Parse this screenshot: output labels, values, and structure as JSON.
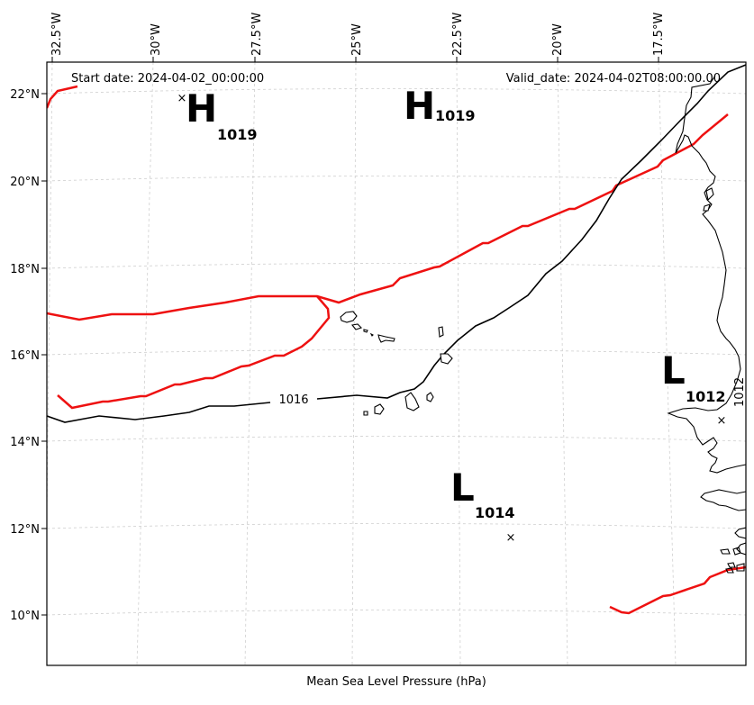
{
  "header": {
    "start_date": "Start date: 2024-04-02_00:00:00",
    "valid_date": "Valid_date: 2024-04-02T08:00:00.00"
  },
  "footer": {
    "caption": "Mean Sea Level Pressure (hPa)"
  },
  "lon_ticks": [
    "32.5°W",
    "30°W",
    "27.5°W",
    "25°W",
    "22.5°W",
    "20°W",
    "17.5°W"
  ],
  "lat_ticks": [
    "22°N",
    "20°N",
    "18°N",
    "16°N",
    "14°N",
    "12°N",
    "10°N"
  ],
  "pressure_centers": [
    {
      "type": "H",
      "value": "1019"
    },
    {
      "type": "H",
      "value": "1019"
    },
    {
      "type": "L",
      "value": "1012"
    },
    {
      "type": "L",
      "value": "1014"
    }
  ],
  "contour_labels": [
    "1016",
    "1012"
  ],
  "colors": {
    "highlight_isobar": "#ee1111",
    "isobar": "#000000",
    "grid": "#cfcfcf"
  }
}
